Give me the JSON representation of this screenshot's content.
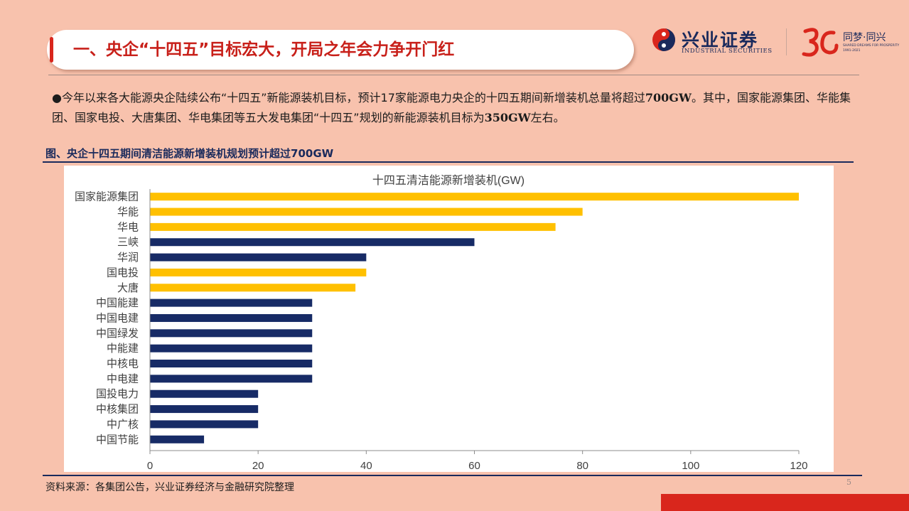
{
  "header": {
    "title": "一、央企“十四五”目标宏大，开局之年会力争开门红",
    "logo_cn": "兴业证券",
    "logo_en": "INDUSTRIAL SECURITIES",
    "anniv_cn": "同梦·同兴",
    "anniv_en": "SHARED DREAMS FOR PROSPERITY",
    "anniv_years": "1991-2021"
  },
  "body": {
    "seg1": "●今年以来各大能源央企陆续公布“十四五”新能源装机目标，预计17家能源电力央企的十四五期间新增装机总量将超过",
    "seg1_bold": "700GW",
    "seg2": "。其中，国家能源集团、华能集团、国家电投、大唐集团、华电集团等五大发电集团“十四五”规划的新能源装机目标为",
    "seg2_bold": "350GW",
    "seg3": "左右。"
  },
  "figure": {
    "title": "图、央企十四五期间清洁能源新增装机规划预计超过700GW",
    "source": "资料来源：各集团公告，兴业证券经济与金融研究院整理",
    "page_number": "5"
  },
  "colors": {
    "background": "#f8c2ad",
    "accent_red": "#d9261c",
    "navy": "#1a2a5c",
    "bar_gold": "#ffc000",
    "bar_navy": "#172b66"
  },
  "chart_data": {
    "type": "bar",
    "orientation": "horizontal",
    "title": "十四五清洁能源新增装机(GW)",
    "categories": [
      "国家能源集团",
      "华能",
      "华电",
      "三峡",
      "华润",
      "国电投",
      "大唐",
      "中国能建",
      "中国电建",
      "中国绿发",
      "中能建",
      "中核电",
      "中电建",
      "国投电力",
      "中核集团",
      "中广核",
      "中国节能"
    ],
    "values": [
      120,
      80,
      75,
      60,
      40,
      40,
      38,
      30,
      30,
      30,
      30,
      30,
      30,
      20,
      20,
      20,
      10
    ],
    "highlight": [
      true,
      true,
      true,
      false,
      false,
      true,
      true,
      false,
      false,
      false,
      false,
      false,
      false,
      false,
      false,
      false,
      false
    ],
    "xlim": [
      0,
      120
    ],
    "xticks": [
      0,
      20,
      40,
      60,
      80,
      100,
      120
    ],
    "grid": false,
    "legend": "none"
  }
}
